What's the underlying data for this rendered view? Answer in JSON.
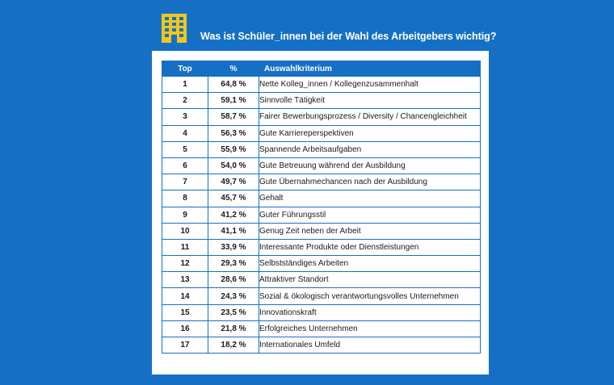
{
  "title": "Was ist Schüler_innen bei der Wahl des Arbeitgebers wichtig?",
  "icon": "office-building-icon",
  "colors": {
    "background": "#1570c5",
    "accent": "#f3c51c",
    "card": "#ffffff"
  },
  "table": {
    "headers": [
      "Top",
      "%",
      "Auswahlkriterium"
    ],
    "rows": [
      {
        "rank": "1",
        "pct": "64,8 %",
        "criterion": "Nette Kolleg_innen / Kollegenzusammenhalt"
      },
      {
        "rank": "2",
        "pct": "59,1 %",
        "criterion": "Sinnvolle Tätigkeit"
      },
      {
        "rank": "3",
        "pct": "58,7 %",
        "criterion": "Fairer Bewerbungsprozess / Diversity / Chancengleichheit"
      },
      {
        "rank": "4",
        "pct": "56,3 %",
        "criterion": "Gute Karriereperspektiven"
      },
      {
        "rank": "5",
        "pct": "55,9 %",
        "criterion": "Spannende Arbeitsaufgaben"
      },
      {
        "rank": "6",
        "pct": "54,0 %",
        "criterion": "Gute Betreuung während der Ausbildung"
      },
      {
        "rank": "7",
        "pct": "49,7 %",
        "criterion": "Gute Übernahmechancen nach der Ausbildung"
      },
      {
        "rank": "8",
        "pct": "45,7 %",
        "criterion": "Gehalt"
      },
      {
        "rank": "9",
        "pct": "41,2 %",
        "criterion": "Guter Führungsstil"
      },
      {
        "rank": "10",
        "pct": "41,1 %",
        "criterion": "Genug Zeit neben der Arbeit"
      },
      {
        "rank": "11",
        "pct": "33,9 %",
        "criterion": "Interessante Produkte oder Dienstleistungen"
      },
      {
        "rank": "12",
        "pct": "29,3 %",
        "criterion": "Selbstständiges Arbeiten"
      },
      {
        "rank": "13",
        "pct": "28,6 %",
        "criterion": "Attraktiver Standort"
      },
      {
        "rank": "14",
        "pct": "24,3 %",
        "criterion": "Sozial & ökologisch verantwortungsvolles Unternehmen"
      },
      {
        "rank": "15",
        "pct": "23,5 %",
        "criterion": "Innovationskraft"
      },
      {
        "rank": "16",
        "pct": "21,8 %",
        "criterion": "Erfolgreiches Unternehmen"
      },
      {
        "rank": "17",
        "pct": "18,2 %",
        "criterion": "Internationales Umfeld"
      }
    ]
  }
}
